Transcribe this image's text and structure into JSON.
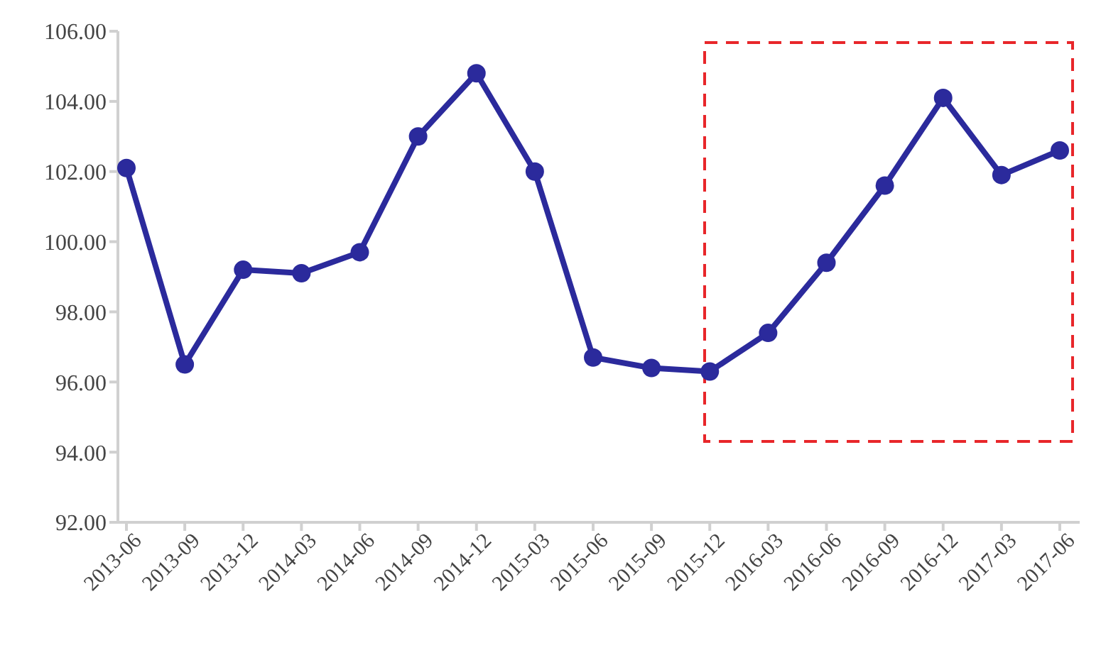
{
  "chart_data": {
    "type": "line",
    "categories": [
      "2013-06",
      "2013-09",
      "2013-12",
      "2014-03",
      "2014-06",
      "2014-09",
      "2014-12",
      "2015-03",
      "2015-06",
      "2015-09",
      "2015-12",
      "2016-03",
      "2016-06",
      "2016-09",
      "2016-12",
      "2017-03",
      "2017-06"
    ],
    "series": [
      {
        "color": "#2b2a9c",
        "values": [
          102.1,
          96.5,
          99.2,
          99.1,
          99.7,
          103.0,
          104.8,
          102.0,
          96.7,
          96.4,
          96.3,
          97.4,
          99.4,
          101.6,
          104.1,
          101.9,
          102.6
        ]
      }
    ],
    "ylim": [
      92,
      106
    ],
    "yticks": [
      {
        "value": 92,
        "label": "92.00"
      },
      {
        "value": 94,
        "label": "94.00"
      },
      {
        "value": 96,
        "label": "96.00"
      },
      {
        "value": 98,
        "label": "98.00"
      },
      {
        "value": 100,
        "label": "100.00"
      },
      {
        "value": 102,
        "label": "102.00"
      },
      {
        "value": 104,
        "label": "104.00"
      },
      {
        "value": 106,
        "label": "106.00"
      }
    ],
    "marker": "circle",
    "line_style": "solid"
  }
}
